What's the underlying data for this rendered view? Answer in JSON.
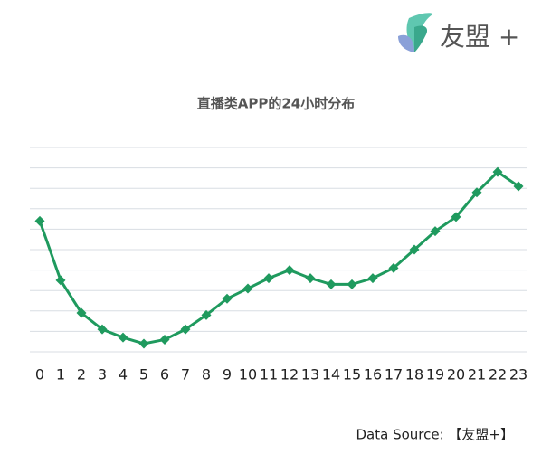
{
  "chart_data": {
    "type": "line",
    "title": "直播类APP的24小时分布",
    "logo": "友盟 +",
    "source": "Data Source: 【友盟+】",
    "categories": [
      "0",
      "1",
      "2",
      "3",
      "4",
      "5",
      "6",
      "7",
      "8",
      "9",
      "10",
      "11",
      "12",
      "13",
      "14",
      "15",
      "16",
      "17",
      "18",
      "19",
      "20",
      "21",
      "22",
      "23"
    ],
    "values": [
      6.4,
      3.5,
      1.9,
      1.1,
      0.7,
      0.4,
      0.6,
      1.1,
      1.8,
      2.6,
      3.1,
      3.6,
      4.0,
      3.6,
      3.3,
      3.3,
      3.6,
      4.1,
      5.0,
      5.9,
      6.6,
      7.8,
      8.8,
      8.1
    ],
    "color": "#1f9a5e",
    "ylim": [
      0,
      10
    ],
    "yticks": [
      0,
      1,
      2,
      3,
      4,
      5,
      6,
      7,
      8,
      9,
      10
    ],
    "grid": true
  }
}
